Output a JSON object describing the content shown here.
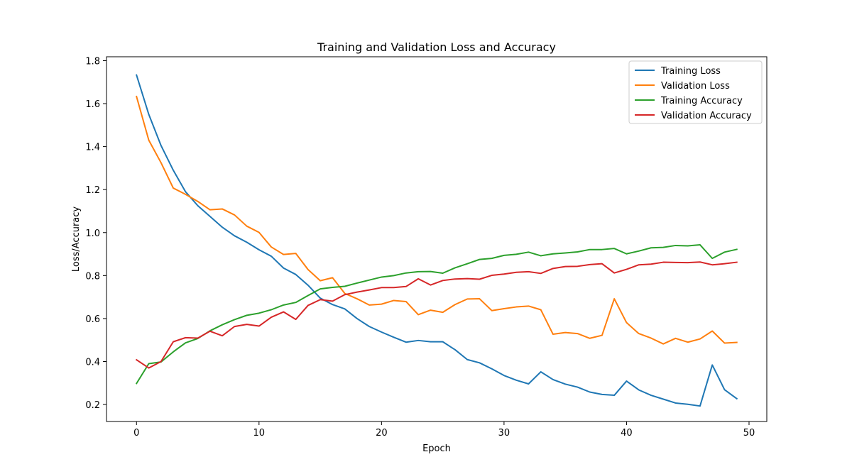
{
  "chart_data": {
    "type": "line",
    "title": "Training and Validation Loss and Accuracy",
    "xlabel": "Epoch",
    "ylabel": "Loss/Accuracy",
    "xlim": [
      -2.45,
      51.45
    ],
    "ylim": [
      0.121,
      1.818
    ],
    "x_ticks": [
      0,
      10,
      20,
      30,
      40,
      50
    ],
    "y_ticks": [
      0.2,
      0.4,
      0.6,
      0.8,
      1.0,
      1.2,
      1.4,
      1.6,
      1.8
    ],
    "y_tick_labels": [
      "0.2",
      "0.4",
      "0.6",
      "0.8",
      "1.0",
      "1.2",
      "1.4",
      "1.6",
      "1.8"
    ],
    "x_tick_labels": [
      "0",
      "10",
      "20",
      "30",
      "40",
      "50"
    ],
    "grid": false,
    "legend_position": "top-right",
    "x": [
      0,
      1,
      2,
      3,
      4,
      5,
      6,
      7,
      8,
      9,
      10,
      11,
      12,
      13,
      14,
      15,
      16,
      17,
      18,
      19,
      20,
      21,
      22,
      23,
      24,
      25,
      26,
      27,
      28,
      29,
      30,
      31,
      32,
      33,
      34,
      35,
      36,
      37,
      38,
      39,
      40,
      41,
      42,
      43,
      44,
      45,
      46,
      47,
      48,
      49
    ],
    "series": [
      {
        "name": "Training Loss",
        "color": "#1f77b4",
        "values": [
          1.733,
          1.55,
          1.405,
          1.29,
          1.19,
          1.125,
          1.075,
          1.025,
          0.985,
          0.955,
          0.92,
          0.89,
          0.835,
          0.805,
          0.755,
          0.695,
          0.665,
          0.645,
          0.6,
          0.563,
          0.537,
          0.513,
          0.49,
          0.498,
          0.492,
          0.492,
          0.455,
          0.409,
          0.394,
          0.366,
          0.335,
          0.313,
          0.296,
          0.352,
          0.316,
          0.295,
          0.281,
          0.258,
          0.247,
          0.243,
          0.309,
          0.268,
          0.243,
          0.225,
          0.207,
          0.201,
          0.193,
          0.384,
          0.269,
          0.227
        ]
      },
      {
        "name": "Validation Loss",
        "color": "#ff7f0e",
        "values": [
          1.633,
          1.43,
          1.325,
          1.207,
          1.178,
          1.145,
          1.106,
          1.11,
          1.082,
          1.03,
          1.001,
          0.933,
          0.898,
          0.903,
          0.828,
          0.776,
          0.79,
          0.717,
          0.692,
          0.663,
          0.667,
          0.684,
          0.679,
          0.618,
          0.639,
          0.629,
          0.665,
          0.691,
          0.692,
          0.637,
          0.646,
          0.654,
          0.658,
          0.641,
          0.527,
          0.535,
          0.53,
          0.508,
          0.522,
          0.692,
          0.581,
          0.53,
          0.509,
          0.482,
          0.508,
          0.49,
          0.505,
          0.542,
          0.486,
          0.489
        ]
      },
      {
        "name": "Training Accuracy",
        "color": "#2ca02c",
        "values": [
          0.298,
          0.39,
          0.398,
          0.445,
          0.487,
          0.507,
          0.543,
          0.571,
          0.595,
          0.615,
          0.625,
          0.641,
          0.663,
          0.675,
          0.707,
          0.738,
          0.745,
          0.75,
          0.765,
          0.779,
          0.793,
          0.8,
          0.812,
          0.818,
          0.819,
          0.811,
          0.836,
          0.855,
          0.875,
          0.88,
          0.894,
          0.899,
          0.909,
          0.892,
          0.901,
          0.905,
          0.91,
          0.921,
          0.921,
          0.926,
          0.901,
          0.914,
          0.929,
          0.931,
          0.94,
          0.938,
          0.943,
          0.88,
          0.909,
          0.922
        ]
      },
      {
        "name": "Validation Accuracy",
        "color": "#d62728",
        "values": [
          0.408,
          0.37,
          0.4,
          0.492,
          0.511,
          0.509,
          0.541,
          0.52,
          0.563,
          0.573,
          0.565,
          0.606,
          0.631,
          0.596,
          0.661,
          0.688,
          0.681,
          0.711,
          0.723,
          0.733,
          0.744,
          0.744,
          0.749,
          0.785,
          0.756,
          0.777,
          0.784,
          0.786,
          0.783,
          0.801,
          0.807,
          0.815,
          0.818,
          0.81,
          0.833,
          0.842,
          0.843,
          0.851,
          0.855,
          0.812,
          0.829,
          0.85,
          0.853,
          0.862,
          0.861,
          0.86,
          0.863,
          0.85,
          0.855,
          0.862
        ]
      }
    ]
  }
}
